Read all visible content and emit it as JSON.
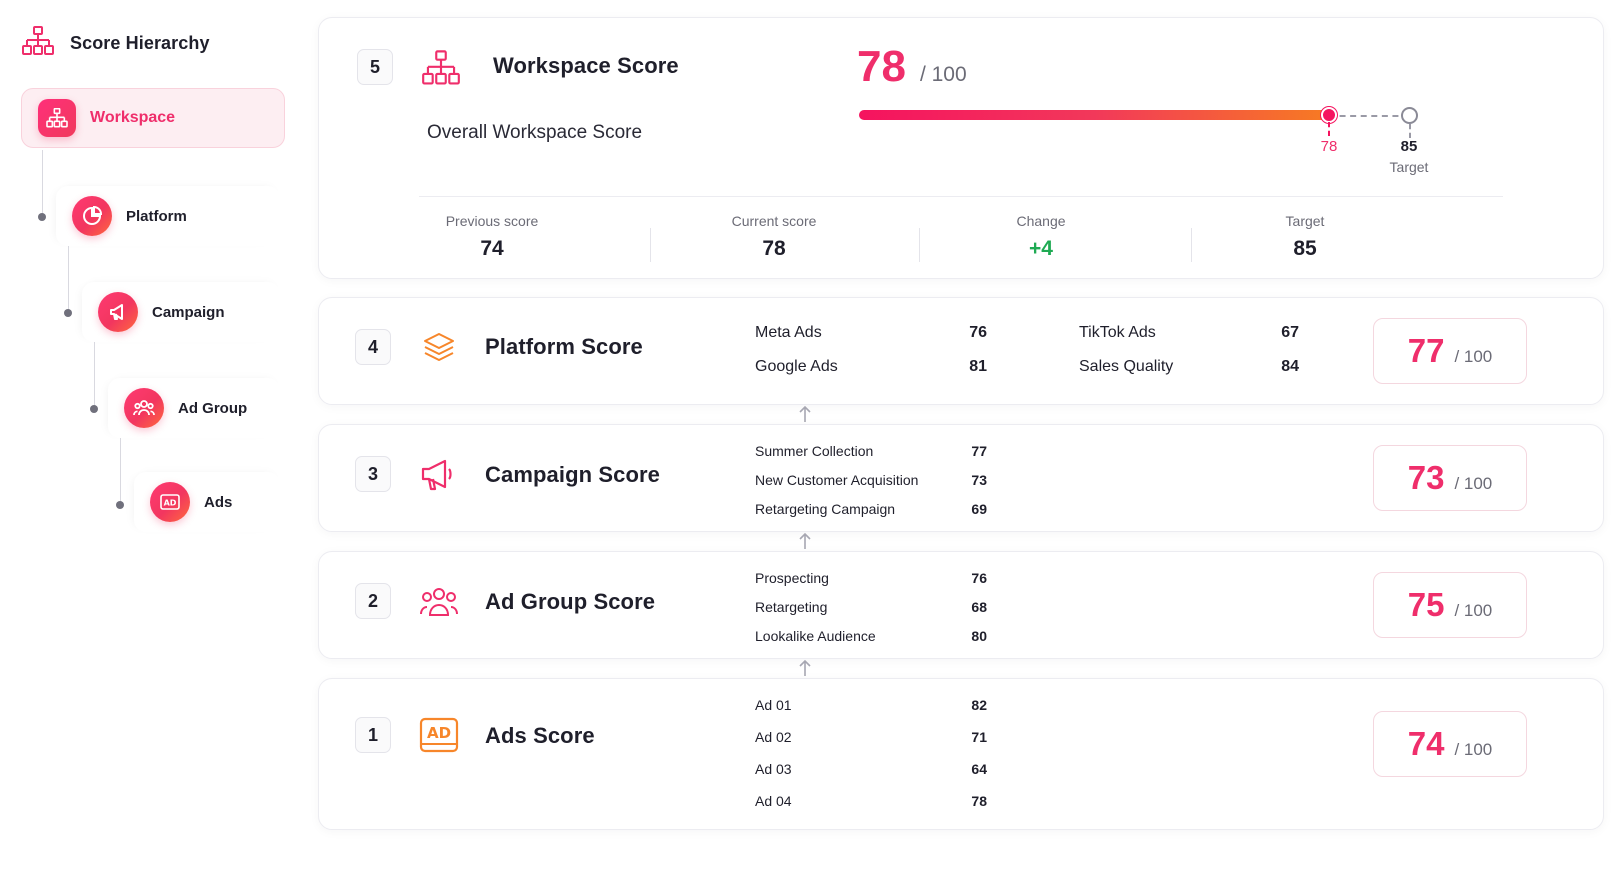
{
  "sidebar": {
    "title": "Score Hierarchy",
    "items": [
      {
        "label": "Workspace",
        "icon": "hierarchy-icon"
      },
      {
        "label": "Platform",
        "icon": "chart-pie-icon"
      },
      {
        "label": "Campaign",
        "icon": "megaphone-icon"
      },
      {
        "label": "Ad Group",
        "icon": "users-icon"
      },
      {
        "label": "Ads",
        "icon": "ad-icon"
      }
    ]
  },
  "workspace": {
    "level": "5",
    "title": "Workspace Score",
    "subtitle": "Overall Workspace Score",
    "score": "78",
    "out_of": "/ 100",
    "progress": {
      "current": 78,
      "target": 85,
      "max": 100
    },
    "current_label": "78",
    "target_value": "85",
    "target_label": "Target",
    "stats": [
      {
        "label": "Previous score",
        "value": "74"
      },
      {
        "label": "Current score",
        "value": "78"
      },
      {
        "label": "Change",
        "value": "+4"
      },
      {
        "label": "Target",
        "value": "85"
      }
    ]
  },
  "platform": {
    "level": "4",
    "title": "Platform Score",
    "score": "77",
    "out_of": "/ 100",
    "metrics": [
      {
        "name": "Meta Ads",
        "value": "76"
      },
      {
        "name": "Google Ads",
        "value": "81"
      },
      {
        "name": "TikTok Ads",
        "value": "67"
      },
      {
        "name": "Sales Quality",
        "value": "84"
      }
    ]
  },
  "campaign": {
    "level": "3",
    "title": "Campaign Score",
    "score": "73",
    "out_of": "/ 100",
    "metrics": [
      {
        "name": "Summer Collection",
        "value": "77"
      },
      {
        "name": "New Customer Acquisition",
        "value": "73"
      },
      {
        "name": "Retargeting Campaign",
        "value": "69"
      }
    ]
  },
  "adgroup": {
    "level": "2",
    "title": "Ad Group Score",
    "score": "75",
    "out_of": "/ 100",
    "metrics": [
      {
        "name": "Prospecting",
        "value": "76"
      },
      {
        "name": "Retargeting",
        "value": "68"
      },
      {
        "name": "Lookalike Audience",
        "value": "80"
      }
    ]
  },
  "ads": {
    "level": "1",
    "title": "Ads Score",
    "icon_text": "AD",
    "score": "74",
    "out_of": "/ 100",
    "metrics": [
      {
        "name": "Ad 01",
        "value": "82"
      },
      {
        "name": "Ad 02",
        "value": "71"
      },
      {
        "name": "Ad 03",
        "value": "64"
      },
      {
        "name": "Ad 04",
        "value": "78"
      }
    ]
  },
  "colors": {
    "accent": "#ef2e6b",
    "orange": "#f7862a",
    "positive": "#1faa53",
    "muted": "#6b6b76"
  }
}
